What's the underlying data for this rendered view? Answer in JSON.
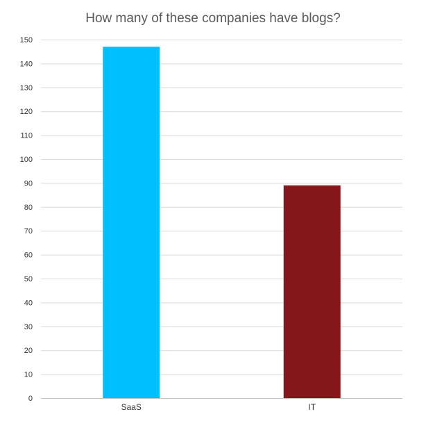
{
  "chart_data": {
    "type": "bar",
    "title": "How many of these companies have blogs?",
    "categories": [
      "SaaS",
      "IT"
    ],
    "values": [
      147,
      89
    ],
    "colors": [
      "#00bfff",
      "#83171a"
    ],
    "xlabel": "",
    "ylabel": "",
    "ylim": [
      0,
      150
    ],
    "yticks": [
      0,
      10,
      20,
      30,
      40,
      50,
      60,
      70,
      80,
      90,
      100,
      110,
      120,
      130,
      140,
      150
    ],
    "grid": true,
    "legend": "none"
  }
}
